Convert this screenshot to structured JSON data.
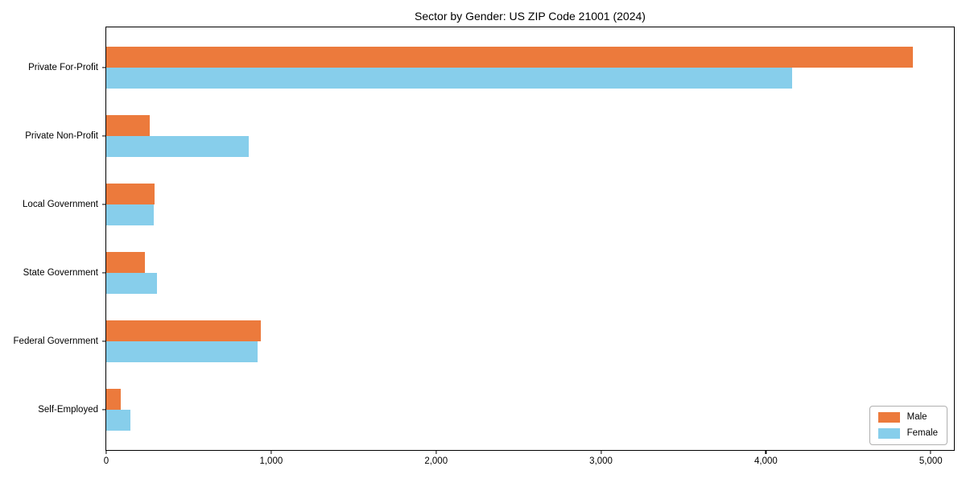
{
  "chart_data": {
    "type": "bar",
    "orientation": "horizontal",
    "title": "Sector by Gender: US ZIP Code 21001 (2024)",
    "categories": [
      "Private For-Profit",
      "Private Non-Profit",
      "Local Government",
      "State Government",
      "Federal Government",
      "Self-Employed"
    ],
    "series": [
      {
        "name": "Male",
        "color": "#ec7a3c",
        "values": [
          4900,
          265,
          295,
          235,
          940,
          90
        ]
      },
      {
        "name": "Female",
        "color": "#87ceeb",
        "values": [
          4165,
          865,
          290,
          310,
          920,
          145
        ]
      }
    ],
    "xlabel": "",
    "ylabel": "",
    "xlim": [
      0,
      5150
    ],
    "xticks": [
      0,
      1000,
      2000,
      3000,
      4000,
      5000
    ],
    "xtick_labels": [
      "0",
      "1,000",
      "2,000",
      "3,000",
      "4,000",
      "5,000"
    ],
    "grid": false,
    "legend": {
      "position": "lower right",
      "items": [
        {
          "label": "Male",
          "color": "#ec7a3c"
        },
        {
          "label": "Female",
          "color": "#87ceeb"
        }
      ]
    }
  }
}
